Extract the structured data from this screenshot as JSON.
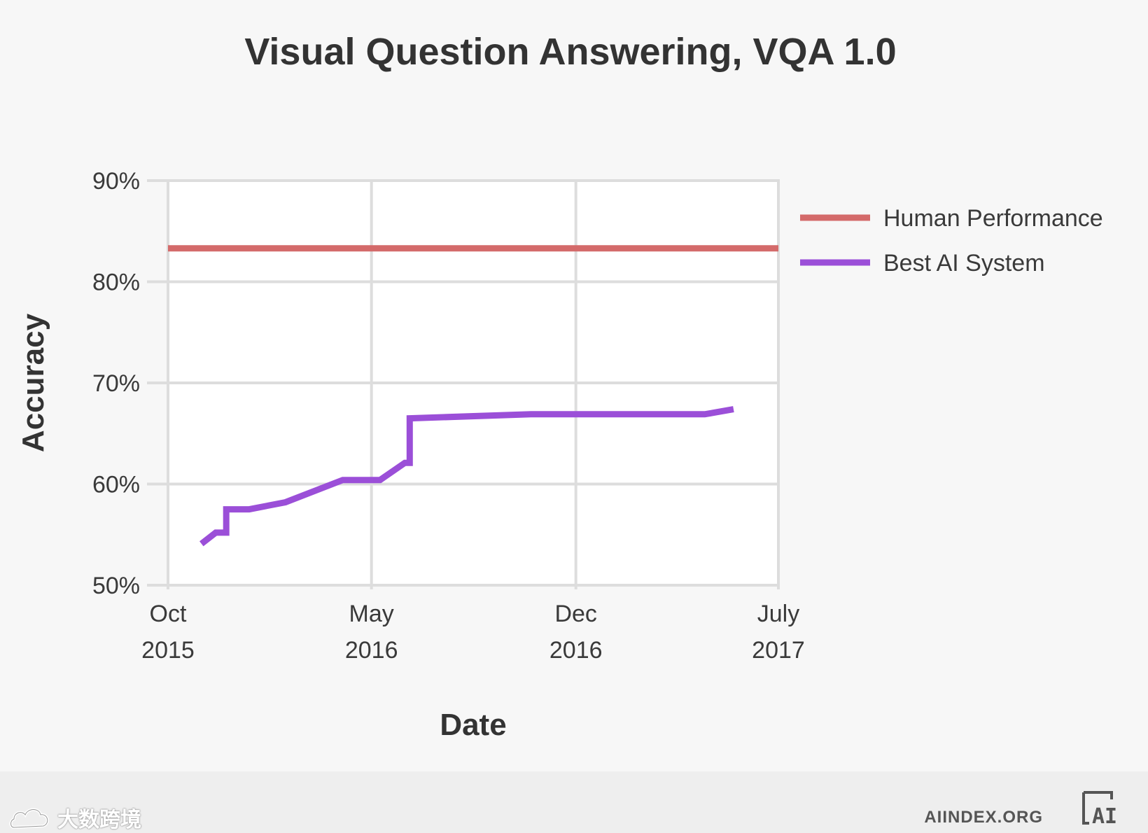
{
  "chart_data": {
    "type": "line",
    "title": "Visual Question Answering, VQA 1.0",
    "xlabel": "Date",
    "ylabel": "Accuracy",
    "ylim": [
      50,
      90
    ],
    "yticks": [
      50,
      60,
      70,
      80,
      90
    ],
    "ytick_labels": [
      "50%",
      "60%",
      "70%",
      "80%",
      "90%"
    ],
    "xlim": [
      "2015-10-01",
      "2017-07-01"
    ],
    "xticks": [
      {
        "date": "2015-10-01",
        "line1": "Oct",
        "line2": "2015"
      },
      {
        "date": "2016-05-01",
        "line1": "May",
        "line2": "2016"
      },
      {
        "date": "2016-12-01",
        "line1": "Dec",
        "line2": "2016"
      },
      {
        "date": "2017-07-01",
        "line1": "July",
        "line2": "2017"
      }
    ],
    "grid": true,
    "legend_position": "right",
    "series": [
      {
        "name": "Human Performance",
        "color": "#d46a6a",
        "points": [
          {
            "x": "2015-10-01",
            "y": 83.3
          },
          {
            "x": "2017-07-01",
            "y": 83.3
          }
        ]
      },
      {
        "name": "Best AI System",
        "color": "#9b4fd8",
        "points": [
          {
            "x": "2015-11-05",
            "y": 54.1
          },
          {
            "x": "2015-11-20",
            "y": 55.2
          },
          {
            "x": "2015-12-01",
            "y": 55.2
          },
          {
            "x": "2015-12-01",
            "y": 57.5
          },
          {
            "x": "2015-12-25",
            "y": 57.5
          },
          {
            "x": "2016-02-01",
            "y": 58.2
          },
          {
            "x": "2016-04-01",
            "y": 60.4
          },
          {
            "x": "2016-05-10",
            "y": 60.4
          },
          {
            "x": "2016-06-05",
            "y": 62.1
          },
          {
            "x": "2016-06-10",
            "y": 62.1
          },
          {
            "x": "2016-06-10",
            "y": 66.5
          },
          {
            "x": "2016-10-15",
            "y": 66.9
          },
          {
            "x": "2017-04-15",
            "y": 66.9
          },
          {
            "x": "2017-05-15",
            "y": 67.4
          }
        ]
      }
    ]
  },
  "footer": {
    "brand": "AIINDEX.ORG",
    "logo_text": "AI",
    "watermark_text": "大数跨境"
  }
}
